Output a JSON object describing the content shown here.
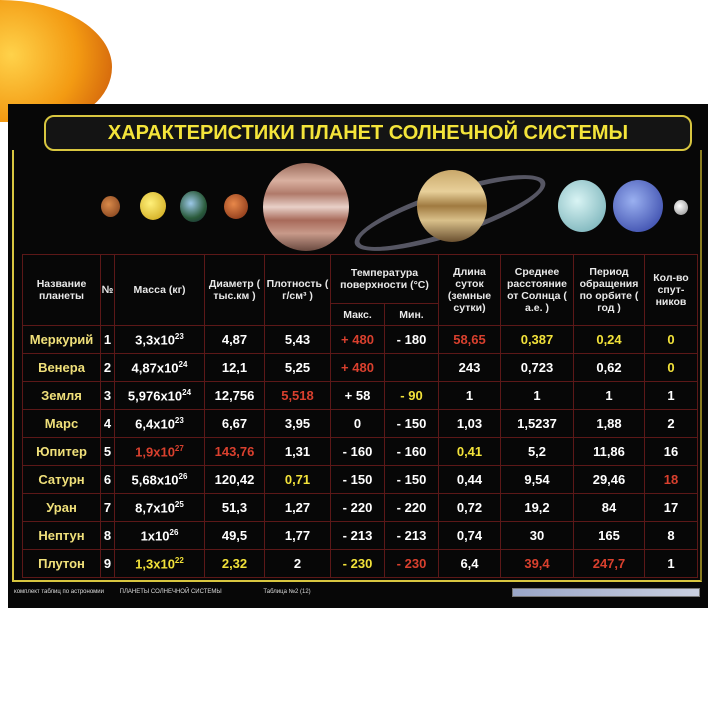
{
  "title": "ХАРАКТЕРИСТИКИ ПЛАНЕТ СОЛНЕЧНОЙ СИСТЕМЫ",
  "headers": {
    "name": "Название планеты",
    "num": "№",
    "mass": "Масса (кг)",
    "diameter": "Диаметр ( тыс.км )",
    "density": "Плотность ( г/см³ )",
    "temperature": "Температура поверхности (°C)",
    "temp_max": "Макс.",
    "temp_min": "Мин.",
    "day": "Длина суток (земные сутки)",
    "distance": "Среднее расстояние от Солнца ( а.е. )",
    "period": "Период обращения по орбите ( год )",
    "satellites": "Кол-во спут-ников"
  },
  "colors": {
    "red": "#d9402e",
    "yellow": "#f2e23a",
    "name": "#f0e07a",
    "grid": "#5c1818",
    "frame": "#d8c640"
  },
  "rows": [
    {
      "name": "Меркурий",
      "num": "1",
      "mass": [
        "3,3x10",
        "23",
        ""
      ],
      "diameter": [
        "4,87",
        ""
      ],
      "density": [
        "5,43",
        ""
      ],
      "tmax": [
        "+ 480",
        "red"
      ],
      "tmin": [
        "- 180",
        ""
      ],
      "day": [
        "58,65",
        "red"
      ],
      "distance": [
        "0,387",
        "yellow"
      ],
      "period": [
        "0,24",
        "yellow"
      ],
      "satellites": [
        "0",
        "yellow"
      ]
    },
    {
      "name": "Венера",
      "num": "2",
      "mass": [
        "4,87x10",
        "24",
        ""
      ],
      "diameter": [
        "12,1",
        ""
      ],
      "density": [
        "5,25",
        ""
      ],
      "tmax": [
        "+ 480",
        "red"
      ],
      "tmin": [
        "",
        ""
      ],
      "day": [
        "243",
        ""
      ],
      "distance": [
        "0,723",
        ""
      ],
      "period": [
        "0,62",
        ""
      ],
      "satellites": [
        "0",
        "yellow"
      ]
    },
    {
      "name": "Земля",
      "num": "3",
      "mass": [
        "5,976x10",
        "24",
        ""
      ],
      "diameter": [
        "12,756",
        ""
      ],
      "density": [
        "5,518",
        "red"
      ],
      "tmax": [
        "+ 58",
        ""
      ],
      "tmin": [
        "- 90",
        "yellow"
      ],
      "day": [
        "1",
        ""
      ],
      "distance": [
        "1",
        ""
      ],
      "period": [
        "1",
        ""
      ],
      "satellites": [
        "1",
        ""
      ]
    },
    {
      "name": "Марс",
      "num": "4",
      "mass": [
        "6,4x10",
        "23",
        ""
      ],
      "diameter": [
        "6,67",
        ""
      ],
      "density": [
        "3,95",
        ""
      ],
      "tmax": [
        "0",
        ""
      ],
      "tmin": [
        "- 150",
        ""
      ],
      "day": [
        "1,03",
        ""
      ],
      "distance": [
        "1,5237",
        ""
      ],
      "period": [
        "1,88",
        ""
      ],
      "satellites": [
        "2",
        ""
      ]
    },
    {
      "name": "Юпитер",
      "num": "5",
      "mass": [
        "1,9x10",
        "27",
        "red"
      ],
      "diameter": [
        "143,76",
        "red"
      ],
      "density": [
        "1,31",
        ""
      ],
      "tmax": [
        "- 160",
        ""
      ],
      "tmin": [
        "- 160",
        ""
      ],
      "day": [
        "0,41",
        "yellow"
      ],
      "distance": [
        "5,2",
        ""
      ],
      "period": [
        "11,86",
        ""
      ],
      "satellites": [
        "16",
        ""
      ]
    },
    {
      "name": "Сатурн",
      "num": "6",
      "mass": [
        "5,68x10",
        "26",
        ""
      ],
      "diameter": [
        "120,42",
        ""
      ],
      "density": [
        "0,71",
        "yellow"
      ],
      "tmax": [
        "- 150",
        ""
      ],
      "tmin": [
        "- 150",
        ""
      ],
      "day": [
        "0,44",
        ""
      ],
      "distance": [
        "9,54",
        ""
      ],
      "period": [
        "29,46",
        ""
      ],
      "satellites": [
        "18",
        "red"
      ]
    },
    {
      "name": "Уран",
      "num": "7",
      "mass": [
        "8,7x10",
        "25",
        ""
      ],
      "diameter": [
        "51,3",
        ""
      ],
      "density": [
        "1,27",
        ""
      ],
      "tmax": [
        "- 220",
        ""
      ],
      "tmin": [
        "- 220",
        ""
      ],
      "day": [
        "0,72",
        ""
      ],
      "distance": [
        "19,2",
        ""
      ],
      "period": [
        "84",
        ""
      ],
      "satellites": [
        "17",
        ""
      ]
    },
    {
      "name": "Нептун",
      "num": "8",
      "mass": [
        "1x10",
        "26",
        ""
      ],
      "diameter": [
        "49,5",
        ""
      ],
      "density": [
        "1,77",
        ""
      ],
      "tmax": [
        "- 213",
        ""
      ],
      "tmin": [
        "- 213",
        ""
      ],
      "day": [
        "0,74",
        ""
      ],
      "distance": [
        "30",
        ""
      ],
      "period": [
        "165",
        ""
      ],
      "satellites": [
        "8",
        ""
      ]
    },
    {
      "name": "Плутон",
      "num": "9",
      "mass": [
        "1,3x10",
        "22",
        "yellow"
      ],
      "diameter": [
        "2,32",
        "yellow"
      ],
      "density": [
        "2",
        ""
      ],
      "tmax": [
        "- 230",
        "yellow"
      ],
      "tmin": [
        "- 230",
        "red"
      ],
      "day": [
        "6,4",
        ""
      ],
      "distance": [
        "39,4",
        "red"
      ],
      "period": [
        "247,7",
        "red"
      ],
      "satellites": [
        "1",
        ""
      ]
    }
  ],
  "footer": {
    "series": "комплект таблиц по астрономии",
    "subject": "ПЛАНЕТЫ СОЛНЕЧНОЙ СИСТЕМЫ",
    "table": "Таблица №2 (12)"
  }
}
